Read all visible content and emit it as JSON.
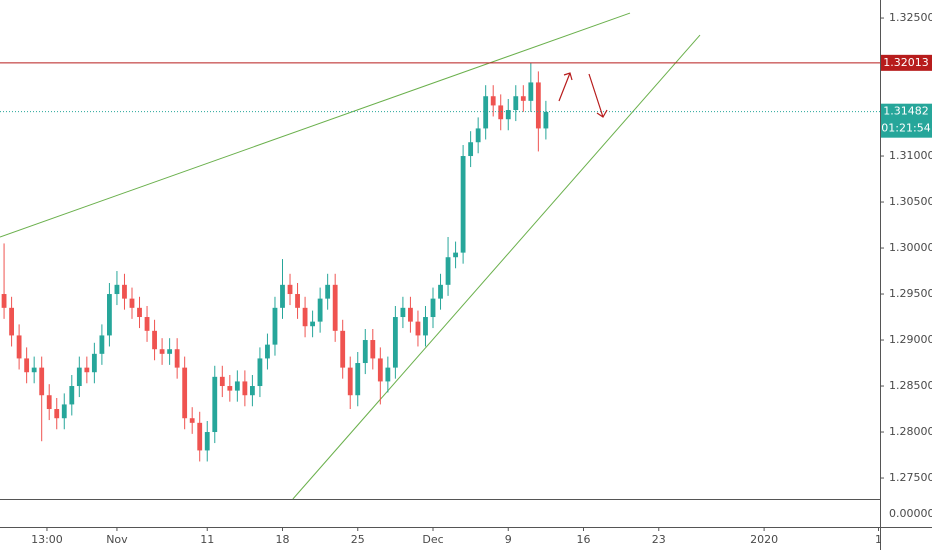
{
  "chart_data": {
    "type": "candlestick",
    "up_color": "#26a69a",
    "down_color": "#ef5350",
    "xlim": [
      -7.77,
      50.7
    ],
    "ylim": [
      1.27272,
      1.32696
    ],
    "xticks": [
      {
        "value": -4.65,
        "label": "13:00"
      },
      {
        "value": 0,
        "label": "Nov"
      },
      {
        "value": 6,
        "label": "11"
      },
      {
        "value": 11,
        "label": "18"
      },
      {
        "value": 16,
        "label": "25"
      },
      {
        "value": 21,
        "label": "Dec"
      },
      {
        "value": 26,
        "label": "9"
      },
      {
        "value": 31,
        "label": "16"
      },
      {
        "value": 36,
        "label": "23"
      },
      {
        "value": 43,
        "label": "2020"
      },
      {
        "value": 50.6,
        "label": "1"
      }
    ],
    "yticks": [
      {
        "value": 1.275,
        "label": "1.27500"
      },
      {
        "value": 1.28,
        "label": "1.28000"
      },
      {
        "value": 1.285,
        "label": "1.28500"
      },
      {
        "value": 1.29,
        "label": "1.29000"
      },
      {
        "value": 1.295,
        "label": "1.29500"
      },
      {
        "value": 1.3,
        "label": "1.30000"
      },
      {
        "value": 1.305,
        "label": "1.30500"
      },
      {
        "value": 1.31,
        "label": "1.31000"
      },
      {
        "value": 1.315,
        "label": "1.31500"
      },
      {
        "value": 1.32,
        "label": "1.32000"
      },
      {
        "value": 1.325,
        "label": "1.32500"
      }
    ],
    "lower_pane_tick": {
      "value": 0,
      "label": "0.00000"
    },
    "level_line": {
      "value": 1.32013,
      "label": "1.32013",
      "color": "#b71c1c"
    },
    "last_price": {
      "value": 1.31482,
      "label": "1.31482",
      "countdown": "01:21:54",
      "color": "#26a69a"
    },
    "trendlines": [
      {
        "x": [
          -7.77,
          34.09
        ],
        "y": [
          1.3012,
          1.32554
        ],
        "color": "#6ab04c"
      },
      {
        "x": [
          11.69,
          38.74
        ],
        "y": [
          1.27272,
          1.32315
        ],
        "color": "#6ab04c"
      }
    ],
    "x": [
      -7.5,
      -7,
      -6.5,
      -6,
      -5.5,
      -5,
      -4.5,
      -4,
      -3.5,
      -3,
      -2.5,
      -2,
      -1.5,
      -1,
      -0.5,
      0,
      0.5,
      1,
      1.5,
      2,
      2.5,
      3,
      3.5,
      4,
      4.5,
      5,
      5.5,
      6,
      6.5,
      7,
      7.5,
      8,
      8.5,
      9,
      9.5,
      10,
      10.5,
      11,
      11.5,
      12,
      12.5,
      13,
      13.5,
      14,
      14.5,
      15,
      15.5,
      16,
      16.5,
      17,
      17.5,
      18,
      18.5,
      19,
      19.5,
      20,
      20.5,
      21,
      21.5,
      22,
      22.5,
      23,
      23.5,
      24,
      24.5,
      25,
      25.5,
      26,
      26.5,
      27,
      27.5,
      28,
      28.5
    ],
    "open": [
      1.295,
      1.2935,
      1.2905,
      1.288,
      1.2865,
      1.287,
      1.284,
      1.2825,
      1.2815,
      1.283,
      1.285,
      1.287,
      1.2865,
      1.2885,
      1.2905,
      1.295,
      1.296,
      1.2945,
      1.2935,
      1.2925,
      1.291,
      1.289,
      1.2885,
      1.289,
      1.287,
      1.2815,
      1.281,
      1.278,
      1.28,
      1.286,
      1.285,
      1.2845,
      1.2855,
      1.284,
      1.285,
      1.288,
      1.2895,
      1.2935,
      1.296,
      1.295,
      1.2935,
      1.2915,
      1.292,
      1.2945,
      1.296,
      1.291,
      1.287,
      1.284,
      1.2875,
      1.29,
      1.288,
      1.2855,
      1.287,
      1.2925,
      1.2935,
      1.292,
      1.2905,
      1.2925,
      1.2945,
      1.296,
      1.299,
      1.2995,
      1.31,
      1.3115,
      1.313,
      1.3165,
      1.3155,
      1.314,
      1.315,
      1.3165,
      1.316,
      1.318,
      1.313
    ],
    "high": [
      1.3005,
      1.2947,
      1.2917,
      1.2892,
      1.2882,
      1.2882,
      1.2852,
      1.2837,
      1.2842,
      1.2862,
      1.2882,
      1.2882,
      1.2897,
      1.2917,
      1.2962,
      1.2975,
      1.2972,
      1.2957,
      1.2947,
      1.2937,
      1.2922,
      1.2902,
      1.2902,
      1.2902,
      1.2882,
      1.2827,
      1.2822,
      1.2812,
      1.2872,
      1.2872,
      1.2862,
      1.2867,
      1.2867,
      1.2862,
      1.2892,
      1.2907,
      1.2947,
      1.2988,
      1.2972,
      1.2962,
      1.2947,
      1.2932,
      1.2957,
      1.2972,
      1.2972,
      1.2922,
      1.2882,
      1.2887,
      1.2912,
      1.2912,
      1.2892,
      1.2882,
      1.2937,
      1.2947,
      1.2947,
      1.2932,
      1.2937,
      1.2957,
      1.2972,
      1.3012,
      1.3007,
      1.3112,
      1.3127,
      1.3142,
      1.3177,
      1.3177,
      1.3167,
      1.3162,
      1.3177,
      1.3177,
      1.3201,
      1.3192,
      1.316
    ],
    "low": [
      1.2923,
      1.2893,
      1.2868,
      1.2853,
      1.2853,
      1.279,
      1.2813,
      1.2803,
      1.2803,
      1.2818,
      1.2838,
      1.2853,
      1.2853,
      1.2873,
      1.2893,
      1.2938,
      1.2933,
      1.2923,
      1.2913,
      1.2898,
      1.2878,
      1.2873,
      1.2873,
      1.2858,
      1.2803,
      1.2798,
      1.2768,
      1.2768,
      1.2788,
      1.2838,
      1.2833,
      1.2833,
      1.2828,
      1.2828,
      1.2838,
      1.2868,
      1.2883,
      1.2923,
      1.2938,
      1.2923,
      1.2903,
      1.2903,
      1.2908,
      1.2933,
      1.2898,
      1.2858,
      1.2825,
      1.2828,
      1.2863,
      1.2868,
      1.283,
      1.2843,
      1.2858,
      1.2913,
      1.2908,
      1.2893,
      1.2893,
      1.2913,
      1.2933,
      1.2948,
      1.2978,
      1.2983,
      1.3088,
      1.3103,
      1.3118,
      1.3143,
      1.3128,
      1.3128,
      1.3138,
      1.3148,
      1.3148,
      1.3105,
      1.3118
    ],
    "close": [
      1.2935,
      1.2905,
      1.288,
      1.2865,
      1.287,
      1.284,
      1.2825,
      1.2815,
      1.283,
      1.285,
      1.287,
      1.2865,
      1.2885,
      1.2905,
      1.295,
      1.296,
      1.2945,
      1.2935,
      1.2925,
      1.291,
      1.289,
      1.2885,
      1.289,
      1.287,
      1.2815,
      1.281,
      1.278,
      1.28,
      1.286,
      1.285,
      1.2845,
      1.2855,
      1.284,
      1.285,
      1.288,
      1.2895,
      1.2935,
      1.296,
      1.295,
      1.2935,
      1.2915,
      1.292,
      1.2945,
      1.296,
      1.291,
      1.287,
      1.284,
      1.2875,
      1.29,
      1.288,
      1.2855,
      1.287,
      1.2925,
      1.2935,
      1.292,
      1.2905,
      1.2925,
      1.2945,
      1.296,
      1.299,
      1.2995,
      1.31,
      1.3115,
      1.313,
      1.3165,
      1.3155,
      1.314,
      1.315,
      1.3165,
      1.316,
      1.318,
      1.313,
      1.3148
    ]
  }
}
